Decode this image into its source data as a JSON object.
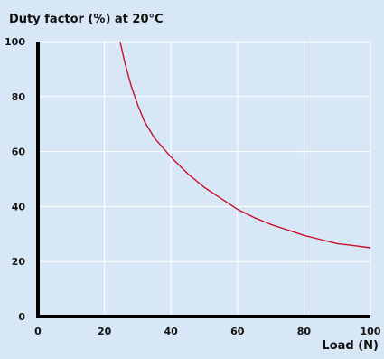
{
  "chart_data": {
    "type": "line",
    "title": "Duty factor (%) at 20°C",
    "xlabel": "Load (N)",
    "ylabel": "",
    "xlim": [
      0,
      100
    ],
    "ylim": [
      0,
      100
    ],
    "x_ticks": [
      0,
      20,
      40,
      60,
      80,
      100
    ],
    "y_ticks": [
      0,
      20,
      40,
      60,
      80,
      100
    ],
    "x_tick_labels": [
      "0",
      "20",
      "40",
      "60",
      "80",
      "100"
    ],
    "y_tick_labels": [
      "0",
      "20",
      "40",
      "60",
      "80",
      "100"
    ],
    "grid": true,
    "series": [
      {
        "color": "#c8102e",
        "x": [
          24.7,
          26,
          28,
          30,
          32,
          35,
          40,
          45,
          50,
          55,
          60,
          65,
          70,
          75,
          80,
          85,
          90,
          95,
          100
        ],
        "y": [
          100,
          93,
          84,
          77,
          71,
          65,
          58,
          52,
          47,
          43,
          39,
          36,
          33.5,
          31.5,
          29.5,
          28,
          26.5,
          25.8,
          25
        ]
      }
    ]
  },
  "colors": {
    "background": "#d7e7f5",
    "grid": "#ffffff",
    "axis": "#000000",
    "curve": "#c8102e"
  }
}
